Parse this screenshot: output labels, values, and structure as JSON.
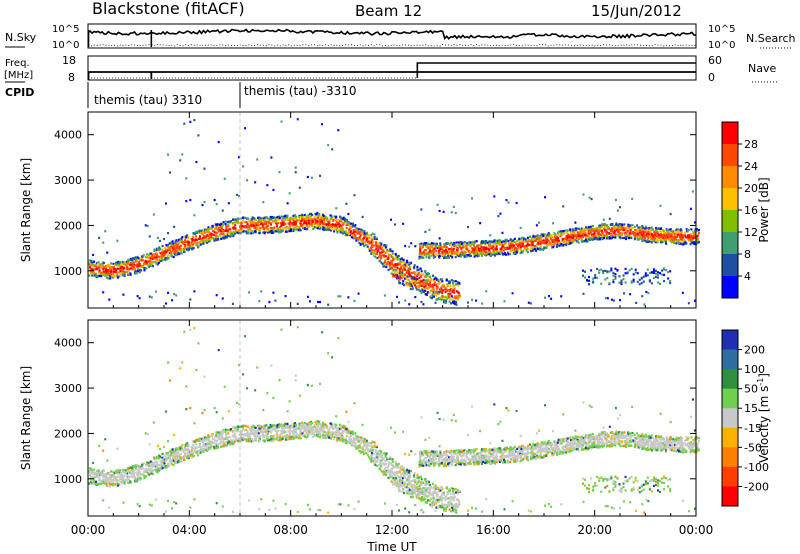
{
  "header": {
    "title": "Blackstone (fitACF)",
    "beam": "Beam 12",
    "date": "15/Jun/2012"
  },
  "panels": {
    "nsky_label": "N.Sky",
    "nsky_top": "10^5",
    "nsky_bottom": "10^0",
    "nsearch_label": "N.Search",
    "nsearch_top": "10^5",
    "nsearch_bottom": "10^0",
    "freq_label": "Freq.",
    "freq_unit": "[MHz]",
    "freq_top": "18",
    "freq_bottom": "8",
    "nave_label": "Nave",
    "nave_top": "60",
    "nave_bottom": "0",
    "cpid_label": "CPID",
    "cpid_1": "themis (tau) 3310",
    "cpid_2": "themis (tau) -3310"
  },
  "colorbars": {
    "power_label": "Power [dB]",
    "power_ticks": [
      "28",
      "24",
      "20",
      "16",
      "12",
      "8",
      "4"
    ],
    "power_colors": [
      "#ff0000",
      "#ff4a00",
      "#ff8c00",
      "#ffc000",
      "#7fbf00",
      "#3f9f6f",
      "#1f4fa0",
      "#0000ff"
    ],
    "velocity_label_main": "Velocity [m s",
    "velocity_label_sup": "-1",
    "velocity_label_end": "]",
    "velocity_ticks": [
      "200",
      "100",
      "50",
      "15",
      "-15",
      "-50",
      "-100",
      "-200"
    ],
    "velocity_colors": [
      "#1f2fb0",
      "#2f6f9f",
      "#2f8f3f",
      "#6fd04f",
      "#c8c8c8",
      "#ffb000",
      "#ff7f00",
      "#ff3f00",
      "#ff0000"
    ]
  },
  "chart_data": {
    "type": "heatmap",
    "xlabel": "Time UT",
    "ylabel": "Slant Range [km]",
    "x_ticks": [
      "00:00",
      "04:00",
      "08:00",
      "12:00",
      "16:00",
      "20:00",
      "00:00"
    ],
    "y_ticks": [
      1000,
      2000,
      3000,
      4000
    ],
    "xlim": [
      0,
      24
    ],
    "ylim": [
      180,
      4500
    ],
    "cpid_change_hour": 6.0,
    "nave_step_hour": 13.0,
    "backscatter_tracks": [
      {
        "name": "main",
        "points": [
          [
            0,
            1050
          ],
          [
            1,
            1000
          ],
          [
            2,
            1150
          ],
          [
            3,
            1400
          ],
          [
            4,
            1650
          ],
          [
            5,
            1850
          ],
          [
            6,
            2000
          ],
          [
            7,
            2000
          ],
          [
            8,
            2050
          ],
          [
            9,
            2100
          ],
          [
            10,
            2000
          ],
          [
            11,
            1650
          ],
          [
            12,
            1150
          ],
          [
            13,
            800
          ],
          [
            13.8,
            580
          ],
          [
            14.6,
            500
          ]
        ]
      },
      {
        "name": "late",
        "points": [
          [
            13,
            1450
          ],
          [
            14,
            1450
          ],
          [
            15,
            1480
          ],
          [
            16,
            1500
          ],
          [
            17,
            1550
          ],
          [
            18,
            1650
          ],
          [
            19,
            1750
          ],
          [
            20,
            1850
          ],
          [
            21,
            1880
          ],
          [
            22,
            1800
          ],
          [
            23,
            1750
          ],
          [
            24,
            1750
          ]
        ]
      },
      {
        "name": "secondary",
        "points": [
          [
            12,
            900
          ],
          [
            12.8,
            700
          ],
          [
            13.4,
            650
          ]
        ]
      }
    ]
  }
}
